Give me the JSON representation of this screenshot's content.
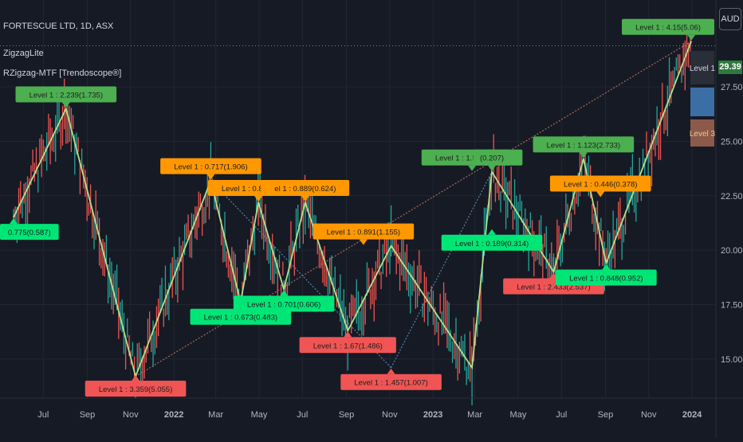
{
  "header": {
    "symbol_line": "FORTESCUE LTD, 1D, ASX",
    "indicator_1": "ZigzagLite",
    "indicator_2": "RZigzag-MTF [Trendoscope®]"
  },
  "currency_label": "AUD",
  "last_price_label": "29.39",
  "colors": {
    "background": "#161a25",
    "up_candle": "#26a69a",
    "down_candle": "#ef5350",
    "zigzag_line": "#b5e08a",
    "pivot_high_label": "#4caf50",
    "pivot_high_label_bright": "#00e676",
    "pivot_low_label_red": "#f05454",
    "pivot_mid_label_orange": "#ff9800",
    "trendline_brown": "#a86a5a",
    "trendline_blue": "#4f86a8"
  },
  "chart_data": {
    "type": "line",
    "title": "FORTESCUE LTD, 1D, ASX",
    "xlabel": "",
    "ylabel": "",
    "x_ticks": [
      "Jul",
      "Sep",
      "Nov",
      "2022",
      "Mar",
      "May",
      "Jul",
      "Sep",
      "Nov",
      "2023",
      "Mar",
      "May",
      "Jul",
      "Sep",
      "Nov",
      "2024"
    ],
    "y_ticks": [
      15.0,
      17.5,
      20.0,
      22.5,
      25.0,
      27.5
    ],
    "ylim": [
      13.2,
      31.2
    ],
    "last_price": 29.39,
    "series": [
      {
        "name": "ZigzagLite",
        "x": [
          "2021-05-20",
          "2021-08-02",
          "2021-11-08",
          "2022-02-22",
          "2022-04-05",
          "2022-04-30",
          "2022-06-05",
          "2022-07-05",
          "2022-09-03",
          "2022-11-03",
          "2023-02-25",
          "2023-03-25",
          "2023-06-20",
          "2023-08-01",
          "2023-09-02",
          "2023-12-31"
        ],
        "values": [
          21.5,
          26.5,
          14.2,
          23.2,
          17.6,
          22.2,
          18.2,
          22.2,
          16.3,
          20.2,
          14.6,
          23.6,
          19.0,
          24.2,
          19.4,
          29.6
        ]
      }
    ],
    "pivot_labels": [
      {
        "text": "Level 1 : 2.239(1.735)",
        "x": "2021-08-02",
        "y": 26.5,
        "kind": "high"
      },
      {
        "text": "0.775(0.587)",
        "x": "2021-05-20",
        "y": 21.5,
        "kind": "low-green"
      },
      {
        "text": "Level 1 : 0.717(1.906)",
        "x": "2022-02-22",
        "y": 23.2,
        "kind": "mid-orange"
      },
      {
        "text": "Level 1 : 0.673(0.483)",
        "x": "2022-04-05",
        "y": 17.6,
        "kind": "low-green"
      },
      {
        "text": "Level 1 : 0.864(0.582)",
        "x": "2022-04-30",
        "y": 22.2,
        "kind": "mid-orange"
      },
      {
        "text": "Level 1 : 0.701(0.606)",
        "x": "2022-06-05",
        "y": 18.2,
        "kind": "low-green"
      },
      {
        "text": "el 1 : 0.889(0.624)",
        "x": "2022-07-05",
        "y": 22.2,
        "kind": "mid-orange"
      },
      {
        "text": "Level 1 : 1.67(1.486)",
        "x": "2022-09-03",
        "y": 16.3,
        "kind": "low-red"
      },
      {
        "text": "Level 1 : 0.891(1.155)",
        "x": "2022-09-25",
        "y": 20.2,
        "kind": "mid-orange"
      },
      {
        "text": "Level 1 : 1.457(1.007)",
        "x": "2022-11-03",
        "y": 14.6,
        "kind": "low-red"
      },
      {
        "text": "Level 1 : 1.577(2.297)",
        "x": "2023-02-25",
        "y": 23.6,
        "kind": "high"
      },
      {
        "text": "(0.207)",
        "x": "2023-03-25",
        "y": 23.6,
        "kind": "high"
      },
      {
        "text": "Level 1 : 0.189(0.314)",
        "x": "2023-03-25",
        "y": 21.0,
        "kind": "low-green"
      },
      {
        "text": "Level 1 : 2.433(2.537)",
        "x": "2023-06-20",
        "y": 19.0,
        "kind": "low-red"
      },
      {
        "text": "Level 1 : 1.123(2.733)",
        "x": "2023-08-01",
        "y": 24.2,
        "kind": "high"
      },
      {
        "text": "Level 1 : 0.446(0.378)",
        "x": "2023-08-25",
        "y": 22.4,
        "kind": "mid-orange"
      },
      {
        "text": "Level 1 : 0.848(0.952)",
        "x": "2023-09-02",
        "y": 19.4,
        "kind": "low-green"
      },
      {
        "text": "Level 1 : 3.359(5.055)",
        "x": "2021-11-08",
        "y": 14.2,
        "kind": "low-red"
      },
      {
        "text": "Level 1 : 4.15(5.06)",
        "x": "2023-12-31",
        "y": 29.6,
        "kind": "high"
      }
    ],
    "side_boxes": [
      {
        "text": "Level 1",
        "color": "#2a2e39"
      },
      {
        "text": "Level 3",
        "color": "#8b5a4a"
      }
    ],
    "grid": true,
    "legend": "none"
  }
}
